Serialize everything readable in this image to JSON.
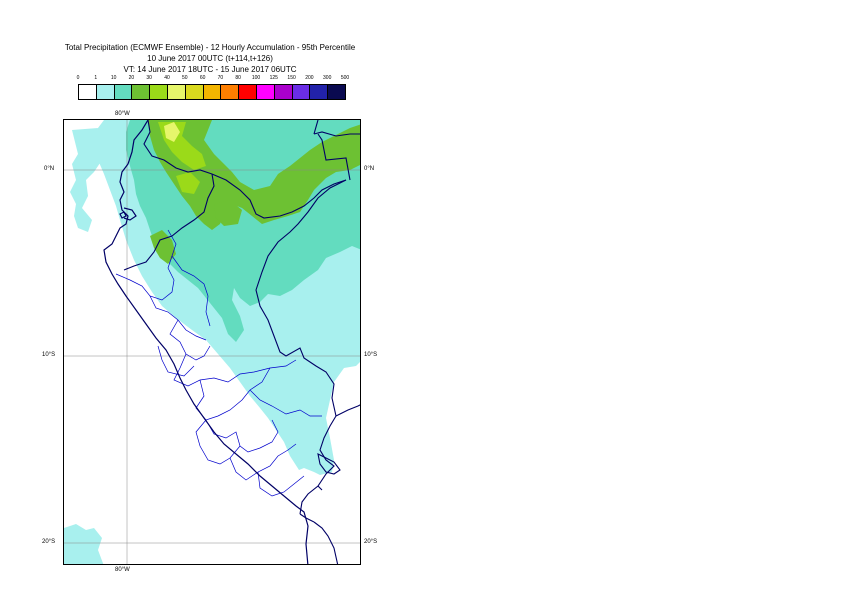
{
  "header": {
    "line1": "Total Precipitation (ECMWF Ensemble) - 12 Hourly Accumulation - 95th Percentile",
    "line2": "10 June 2017 00UTC (t+114,t+126)",
    "line3": "VT: 14 June 2017 18UTC - 15 June 2017 06UTC"
  },
  "legend": {
    "thresholds": [
      "0",
      "1",
      "10",
      "20",
      "30",
      "40",
      "50",
      "60",
      "70",
      "80",
      "100",
      "125",
      "150",
      "200",
      "300",
      "500"
    ],
    "colors": [
      "#ffffff",
      "#a8f0ee",
      "#63dcbf",
      "#6dc133",
      "#9bda19",
      "#e6f66b",
      "#d9d91e",
      "#f3b500",
      "#ff7f00",
      "#ff0000",
      "#ff00ff",
      "#aa00cc",
      "#6a2de6",
      "#2222aa",
      "#0a0a50"
    ]
  },
  "axes": {
    "lon_top": "80°W",
    "lon_bottom": "80°W",
    "lat_0_left": "0°N",
    "lat_0_right": "0°N",
    "lat_10_left": "10°S",
    "lat_10_right": "10°S",
    "lat_20_left": "20°S",
    "lat_20_right": "20°S"
  },
  "map": {
    "precip_colors": {
      "light": "#a8f0ee",
      "medium": "#63dcbf",
      "green": "#6dc133",
      "lime": "#9bda19",
      "yellow": "#e6f66b"
    },
    "border_color": "#000066",
    "region_color": "#0000cc"
  }
}
